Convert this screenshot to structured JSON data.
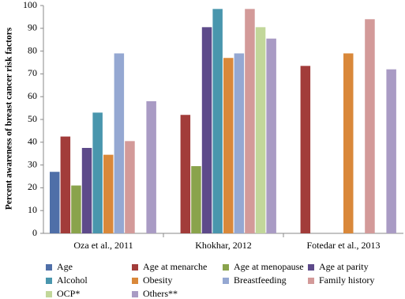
{
  "chart_data": {
    "type": "bar",
    "y_label": "Percent awareness of breast cancer risk factors",
    "categories": [
      "Oza et al., 2011",
      "Khokhar, 2012",
      "Fotedar et al., 2013"
    ],
    "series": [
      {
        "name": "Age",
        "color": "#4f6fa8",
        "values": [
          27,
          null,
          null
        ]
      },
      {
        "name": "Age at menarche",
        "color": "#a23c3a",
        "values": [
          42.5,
          52,
          73.5
        ]
      },
      {
        "name": "Age at menopause",
        "color": "#8aa34c",
        "values": [
          21,
          29.5,
          null
        ]
      },
      {
        "name": "Age at parity",
        "color": "#5d4a8a",
        "values": [
          37.5,
          90.5,
          null
        ]
      },
      {
        "name": "Alcohol",
        "color": "#4996ad",
        "values": [
          53,
          98.5,
          null
        ]
      },
      {
        "name": "Obesity",
        "color": "#d9883a",
        "values": [
          34.5,
          77,
          79
        ]
      },
      {
        "name": "Breastfeeding",
        "color": "#95a8d2",
        "values": [
          79,
          79,
          null
        ]
      },
      {
        "name": "Family history",
        "color": "#d39a99",
        "values": [
          40.5,
          98.5,
          94
        ]
      },
      {
        "name": "OCP*",
        "color": "#c2d79a",
        "values": [
          null,
          90.5,
          null
        ]
      },
      {
        "name": "Others**",
        "color": "#a99bc4",
        "values": [
          58,
          85.5,
          72
        ]
      }
    ],
    "ylim": [
      0,
      100
    ],
    "yticks": [
      0,
      10,
      20,
      30,
      40,
      50,
      60,
      70,
      80,
      90,
      100
    ],
    "grid": false
  }
}
